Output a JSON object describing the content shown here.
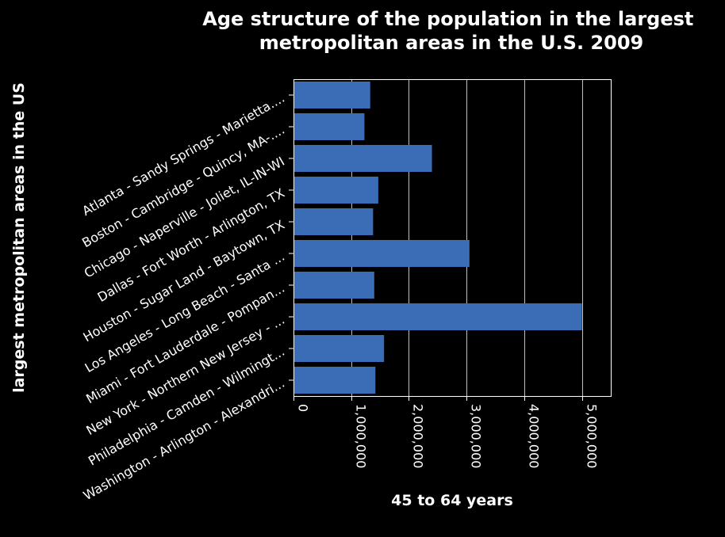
{
  "chart_data": {
    "type": "bar",
    "orientation": "horizontal",
    "title": "Age structure of the population in the largest metropolitan areas in the U.S. 2009",
    "xlabel": "45 to 64 years",
    "ylabel": "largest metropolitan areas in the US",
    "categories": [
      "Atlanta - Sandy Springs - Marietta....",
      "Boston - Cambridge - Quincy, MA-....",
      "Chicago - Naperville - Joliet, IL-IN-WI",
      "Dallas - Fort Worth - Arlington, TX",
      "Houston - Sugar Land - Baytown, TX",
      "Los Angeles - Long Beach - Santa ...",
      "Miami - Fort Lauderdale - Pompan...",
      "New York - Northern New Jersey - ...",
      "Philadelphia - Camden - Wilmingt...",
      "Washington - Arlington - Alexandri..."
    ],
    "values": [
      1330000,
      1230000,
      2400000,
      1470000,
      1380000,
      3050000,
      1400000,
      5000000,
      1570000,
      1420000
    ],
    "xlim": [
      0,
      5500000
    ],
    "xticks": [
      0,
      1000000,
      2000000,
      3000000,
      4000000,
      5000000
    ],
    "xtick_labels": [
      "0",
      "1,000,000",
      "2,000,000",
      "3,000,000",
      "4,000,000",
      "5,000,000"
    ],
    "grid": true,
    "bar_color": "#3a6db5",
    "background_color": "#000000"
  }
}
